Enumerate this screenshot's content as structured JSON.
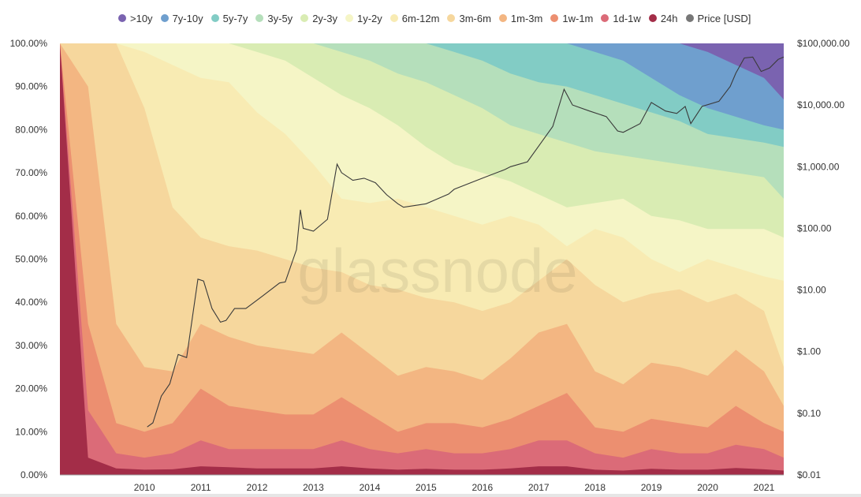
{
  "chart_data": {
    "type": "area",
    "subtype": "stacked-percent-area-with-price-line",
    "watermark": "glassnode",
    "legend_placement": "top",
    "bands": [
      {
        "name": ">10y",
        "color": "#7a63b0"
      },
      {
        "name": "7y-10y",
        "color": "#6f9fce"
      },
      {
        "name": "5y-7y",
        "color": "#82ccc5"
      },
      {
        "name": "3y-5y",
        "color": "#b5dfbb"
      },
      {
        "name": "2y-3y",
        "color": "#d9ecb3"
      },
      {
        "name": "1y-2y",
        "color": "#f5f5c6"
      },
      {
        "name": "6m-12m",
        "color": "#f8ebb3"
      },
      {
        "name": "3m-6m",
        "color": "#f6d79d"
      },
      {
        "name": "1m-3m",
        "color": "#f3b682"
      },
      {
        "name": "1w-1m",
        "color": "#ec8f70"
      },
      {
        "name": "1d-1w",
        "color": "#db6b78"
      },
      {
        "name": "24h",
        "color": "#a32d48"
      }
    ],
    "price_series": {
      "name": "Price [USD]",
      "color": "#777777"
    },
    "x": [
      2009.0,
      2009.5,
      2010.0,
      2010.5,
      2011.0,
      2011.5,
      2012.0,
      2012.5,
      2013.0,
      2013.5,
      2014.0,
      2014.5,
      2015.0,
      2015.5,
      2016.0,
      2016.5,
      2017.0,
      2017.5,
      2018.0,
      2018.5,
      2019.0,
      2019.5,
      2020.0,
      2020.5,
      2021.0,
      2021.5,
      2021.85
    ],
    "cumulative_tops": {
      ">10y": [
        100,
        100,
        100,
        100,
        100,
        100,
        100,
        100,
        100,
        100,
        100,
        100,
        100,
        100,
        100,
        100,
        100,
        100,
        100,
        100,
        100,
        100,
        100,
        100,
        100,
        100,
        100
      ],
      "7y-10y": [
        100,
        100,
        100,
        100,
        100,
        100,
        100,
        100,
        100,
        100,
        100,
        100,
        100,
        100,
        100,
        100,
        100,
        100,
        100,
        100,
        100,
        100,
        100,
        98,
        95,
        92,
        87
      ],
      "5y-7y": [
        100,
        100,
        100,
        100,
        100,
        100,
        100,
        100,
        100,
        100,
        100,
        100,
        100,
        100,
        100,
        100,
        100,
        100,
        100,
        98,
        96,
        92,
        88,
        85,
        83,
        81,
        80
      ],
      "3y-5y": [
        100,
        100,
        100,
        100,
        100,
        100,
        100,
        100,
        100,
        100,
        100,
        100,
        100,
        100,
        98,
        96,
        93,
        91,
        90,
        88,
        86,
        84,
        82,
        79,
        78,
        77,
        76
      ],
      "2y-3y": [
        100,
        100,
        100,
        100,
        100,
        100,
        100,
        100,
        100,
        100,
        98,
        96,
        93,
        91,
        88,
        85,
        81,
        79,
        77,
        75,
        74,
        73,
        72,
        71,
        70,
        69,
        64
      ],
      "1y-2y": [
        100,
        100,
        100,
        100,
        100,
        100,
        100,
        98,
        96,
        92,
        88,
        85,
        81,
        76,
        72,
        70,
        68,
        65,
        62,
        63,
        64,
        60,
        59,
        57,
        57,
        57,
        55
      ],
      "6m-12m": [
        100,
        100,
        100,
        98,
        95,
        92,
        91,
        84,
        79,
        72,
        64,
        63,
        64,
        62,
        60,
        58,
        60,
        58,
        53,
        57,
        55,
        50,
        47,
        50,
        48,
        46,
        45
      ],
      "3m-6m": [
        100,
        100,
        100,
        85,
        62,
        55,
        53,
        52,
        50,
        48,
        47,
        44,
        43,
        41,
        40,
        38,
        40,
        45,
        50,
        44,
        40,
        42,
        43,
        40,
        42,
        38,
        25
      ],
      "1m-3m": [
        100,
        90,
        35,
        25,
        24,
        35,
        32,
        30,
        29,
        28,
        33,
        28,
        23,
        25,
        24,
        22,
        27,
        33,
        35,
        24,
        21,
        26,
        25,
        23,
        29,
        24,
        16
      ],
      "1w-1m": [
        100,
        35,
        12,
        10,
        12,
        20,
        16,
        15,
        14,
        14,
        18,
        14,
        10,
        12,
        12,
        11,
        13,
        16,
        19,
        11,
        10,
        13,
        12,
        11,
        16,
        12,
        10
      ],
      "1d-1w": [
        100,
        15,
        5,
        4,
        5,
        8,
        6,
        6,
        6,
        6,
        8,
        6,
        5,
        6,
        5,
        5,
        6,
        8,
        8,
        5,
        4,
        6,
        5,
        5,
        7,
        6,
        4
      ],
      "24h": [
        100,
        4,
        1.5,
        1.2,
        1.3,
        2,
        1.8,
        1.5,
        1.5,
        1.5,
        2,
        1.5,
        1.2,
        1.4,
        1.2,
        1.2,
        1.5,
        2,
        2,
        1.2,
        1,
        1.4,
        1.2,
        1.2,
        1.6,
        1.3,
        1
      ]
    },
    "price_points": [
      [
        2010.55,
        0.06
      ],
      [
        2010.65,
        0.07
      ],
      [
        2010.8,
        0.19
      ],
      [
        2010.95,
        0.3
      ],
      [
        2011.1,
        0.9
      ],
      [
        2011.25,
        0.8
      ],
      [
        2011.45,
        15
      ],
      [
        2011.55,
        14
      ],
      [
        2011.7,
        5
      ],
      [
        2011.85,
        3
      ],
      [
        2011.95,
        3.2
      ],
      [
        2012.1,
        5
      ],
      [
        2012.3,
        5
      ],
      [
        2012.6,
        8
      ],
      [
        2012.9,
        13
      ],
      [
        2013.0,
        13.5
      ],
      [
        2013.2,
        45
      ],
      [
        2013.27,
        200
      ],
      [
        2013.32,
        100
      ],
      [
        2013.5,
        90
      ],
      [
        2013.75,
        140
      ],
      [
        2013.92,
        1100
      ],
      [
        2014.0,
        800
      ],
      [
        2014.2,
        600
      ],
      [
        2014.4,
        650
      ],
      [
        2014.6,
        550
      ],
      [
        2014.8,
        350
      ],
      [
        2015.0,
        250
      ],
      [
        2015.1,
        220
      ],
      [
        2015.5,
        250
      ],
      [
        2015.9,
        360
      ],
      [
        2016.0,
        430
      ],
      [
        2016.5,
        650
      ],
      [
        2016.9,
        900
      ],
      [
        2017.0,
        1000
      ],
      [
        2017.3,
        1200
      ],
      [
        2017.55,
        2500
      ],
      [
        2017.75,
        4500
      ],
      [
        2017.95,
        18000
      ],
      [
        2018.1,
        10000
      ],
      [
        2018.4,
        8000
      ],
      [
        2018.7,
        6500
      ],
      [
        2018.9,
        3800
      ],
      [
        2019.0,
        3600
      ],
      [
        2019.3,
        5000
      ],
      [
        2019.5,
        11000
      ],
      [
        2019.75,
        8000
      ],
      [
        2019.95,
        7300
      ],
      [
        2020.1,
        9500
      ],
      [
        2020.2,
        5000
      ],
      [
        2020.4,
        9500
      ],
      [
        2020.7,
        11500
      ],
      [
        2020.9,
        20000
      ],
      [
        2021.0,
        33000
      ],
      [
        2021.15,
        58000
      ],
      [
        2021.3,
        60000
      ],
      [
        2021.45,
        35000
      ],
      [
        2021.6,
        40000
      ],
      [
        2021.75,
        55000
      ],
      [
        2021.85,
        60000
      ]
    ],
    "x_tick_labels": [
      "2010",
      "2011",
      "2012",
      "2013",
      "2014",
      "2015",
      "2016",
      "2017",
      "2018",
      "2019",
      "2020",
      "2021"
    ],
    "y_left_tick_labels": [
      "0.00%",
      "10.00%",
      "20.00%",
      "30.00%",
      "40.00%",
      "50.00%",
      "60.00%",
      "70.00%",
      "80.00%",
      "90.00%",
      "100.00%"
    ],
    "y_right_tick_labels": [
      "$0.01",
      "$0.10",
      "$1.00",
      "$10.00",
      "$100.00",
      "$1,000.00",
      "$10,000.00",
      "$100,000.00"
    ],
    "y_left_range": [
      0,
      100
    ],
    "y_right_range": [
      0.01,
      100000
    ],
    "y_right_scale": "log",
    "x_range": [
      2009.0,
      2021.85
    ]
  }
}
